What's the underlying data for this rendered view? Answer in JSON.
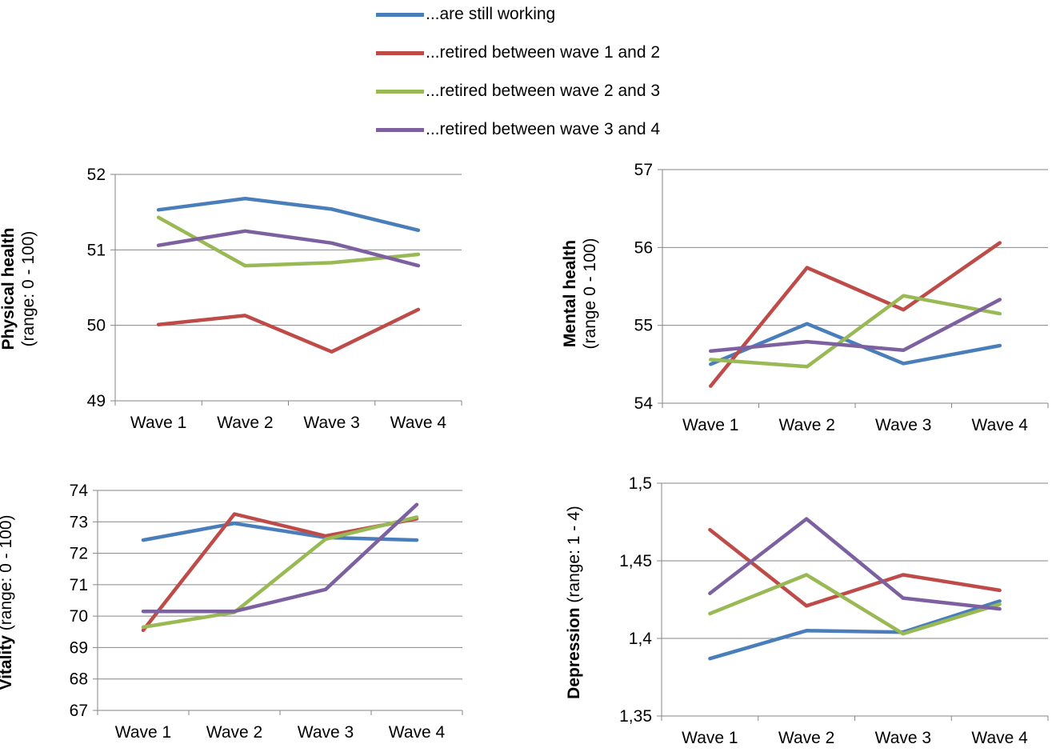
{
  "legend": {
    "items": [
      {
        "label": "...are still working",
        "color": "#4a7ebb"
      },
      {
        "label": "...retired between wave 1 and 2",
        "color": "#be4b48"
      },
      {
        "label": "...retired between wave 2 and 3",
        "color": "#98b954"
      },
      {
        "label": "...retired between wave 3 and 4",
        "color": "#7d60a0"
      }
    ]
  },
  "colors": {
    "axis": "#868686",
    "grid": "#868686"
  },
  "chart_data": [
    {
      "type": "line",
      "ylabel_bold": "Physical health",
      "ylabel_rest": "(range: 0 - 100)",
      "categories": [
        "Wave 1",
        "Wave 2",
        "Wave 3",
        "Wave 4"
      ],
      "ylim": [
        49,
        52
      ],
      "yticks": [
        49,
        50,
        51,
        52
      ],
      "ytick_labels": [
        "49",
        "50",
        "51",
        "52"
      ],
      "grid": true,
      "series": [
        {
          "name": "...are still working",
          "values": [
            51.53,
            51.68,
            51.54,
            51.26
          ]
        },
        {
          "name": "...retired between wave 1 and 2",
          "values": [
            50.01,
            50.13,
            49.65,
            50.21
          ]
        },
        {
          "name": "...retired between wave 2 and 3",
          "values": [
            51.43,
            50.79,
            50.83,
            50.94
          ]
        },
        {
          "name": "...retired between wave 3 and 4",
          "values": [
            51.06,
            51.25,
            51.09,
            50.79
          ]
        }
      ]
    },
    {
      "type": "line",
      "ylabel_bold": "Mental health",
      "ylabel_rest": "(range 0 - 100)",
      "categories": [
        "Wave 1",
        "Wave 2",
        "Wave 3",
        "Wave 4"
      ],
      "ylim": [
        54,
        57
      ],
      "yticks": [
        54,
        55,
        56,
        57
      ],
      "ytick_labels": [
        "54",
        "55",
        "56",
        "57"
      ],
      "grid": true,
      "series": [
        {
          "name": "...are still working",
          "values": [
            54.5,
            55.02,
            54.51,
            54.74
          ]
        },
        {
          "name": "...retired between wave 1 and 2",
          "values": [
            54.22,
            55.74,
            55.2,
            56.06
          ]
        },
        {
          "name": "...retired between wave 2 and 3",
          "values": [
            54.56,
            54.47,
            55.38,
            55.15
          ]
        },
        {
          "name": "...retired between wave 3 and 4",
          "values": [
            54.67,
            54.79,
            54.68,
            55.33
          ]
        }
      ]
    },
    {
      "type": "line",
      "ylabel_bold": "Vitality",
      "ylabel_rest": "(range: 0 - 100)",
      "categories": [
        "Wave 1",
        "Wave 2",
        "Wave 3",
        "Wave 4"
      ],
      "ylim": [
        67,
        74
      ],
      "yticks": [
        67,
        68,
        69,
        70,
        71,
        72,
        73,
        74
      ],
      "ytick_labels": [
        "67",
        "68",
        "69",
        "70",
        "71",
        "72",
        "73",
        "74"
      ],
      "grid": true,
      "series": [
        {
          "name": "...are still working",
          "values": [
            72.42,
            72.95,
            72.5,
            72.42
          ]
        },
        {
          "name": "...retired between wave 1 and 2",
          "values": [
            69.55,
            73.25,
            72.55,
            73.1
          ]
        },
        {
          "name": "...retired between wave 2 and 3",
          "values": [
            69.65,
            70.12,
            72.45,
            73.15
          ]
        },
        {
          "name": "...retired between wave 3 and 4",
          "values": [
            70.15,
            70.15,
            70.85,
            73.55
          ]
        }
      ]
    },
    {
      "type": "line",
      "ylabel_bold": "Depression",
      "ylabel_rest": "(range: 1 - 4)",
      "categories": [
        "Wave 1",
        "Wave 2",
        "Wave 3",
        "Wave 4"
      ],
      "ylim": [
        1.35,
        1.5
      ],
      "yticks": [
        1.35,
        1.4,
        1.45,
        1.5
      ],
      "ytick_labels": [
        "1,35",
        "1,4",
        "1,45",
        "1,5"
      ],
      "grid": true,
      "series": [
        {
          "name": "...are still working",
          "values": [
            1.387,
            1.405,
            1.404,
            1.424
          ]
        },
        {
          "name": "...retired between wave 1 and 2",
          "values": [
            1.47,
            1.421,
            1.441,
            1.431
          ]
        },
        {
          "name": "...retired between wave 2 and 3",
          "values": [
            1.416,
            1.441,
            1.403,
            1.422
          ]
        },
        {
          "name": "...retired between wave 3 and 4",
          "values": [
            1.429,
            1.477,
            1.426,
            1.419
          ]
        }
      ]
    }
  ]
}
